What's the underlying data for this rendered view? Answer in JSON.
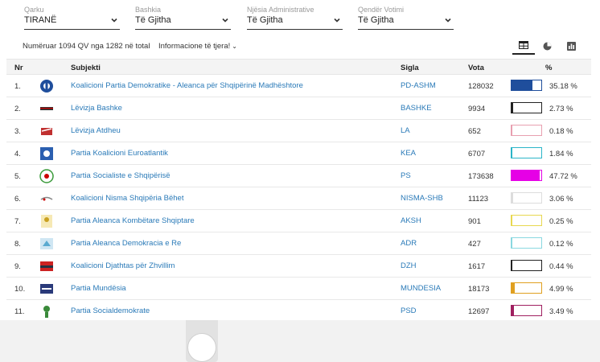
{
  "filters": [
    {
      "label": "Qarku",
      "value": "TIRANË"
    },
    {
      "label": "Bashkia",
      "value": "Të Gjitha"
    },
    {
      "label": "Njësia Administrative",
      "value": "Të Gjitha"
    },
    {
      "label": "Qendër Votimi",
      "value": "Të Gjitha"
    }
  ],
  "info": {
    "counted": "Numëruar 1094 QV nga 1282 në total",
    "more": "Informacione të tjera!"
  },
  "view_icons": [
    "table-icon",
    "pie-chart-icon",
    "bar-chart-icon"
  ],
  "table": {
    "headers": {
      "nr": "Nr",
      "subject": "Subjekti",
      "sigla": "Sigla",
      "vota": "Vota",
      "pct": "%"
    },
    "rows": [
      {
        "nr": "1.",
        "name": "Koalicioni Partia Demokratike - Aleanca për Shqipërinë Madhështore",
        "sigla": "PD-ASHM",
        "vota": "128032",
        "pct": "35.18 %",
        "pct_value": 35.18,
        "color": "#1f4e9c"
      },
      {
        "nr": "2.",
        "name": "Lëvizja Bashke",
        "sigla": "BASHKE",
        "vota": "9934",
        "pct": "2.73 %",
        "pct_value": 2.73,
        "color": "#222222"
      },
      {
        "nr": "3.",
        "name": "Lëvizja Atdheu",
        "sigla": "LA",
        "vota": "652",
        "pct": "0.18 %",
        "pct_value": 0.18,
        "color": "#e8a0b0"
      },
      {
        "nr": "4.",
        "name": "Partia Koalicioni Euroatlantik",
        "sigla": "KEA",
        "vota": "6707",
        "pct": "1.84 %",
        "pct_value": 1.84,
        "color": "#2bb5c8"
      },
      {
        "nr": "5.",
        "name": "Partia Socialiste e Shqipërisë",
        "sigla": "PS",
        "vota": "173638",
        "pct": "47.72 %",
        "pct_value": 47.72,
        "color": "#e600e6"
      },
      {
        "nr": "6.",
        "name": "Koalicioni Nisma Shqipëria Bëhet",
        "sigla": "NISMA-SHB",
        "vota": "11123",
        "pct": "3.06 %",
        "pct_value": 3.06,
        "color": "#dddddd"
      },
      {
        "nr": "7.",
        "name": "Partia Aleanca Kombëtare Shqiptare",
        "sigla": "AKSH",
        "vota": "901",
        "pct": "0.25 %",
        "pct_value": 0.25,
        "color": "#e8d850"
      },
      {
        "nr": "8.",
        "name": "Partia Aleanca Demokracia e Re",
        "sigla": "ADR",
        "vota": "427",
        "pct": "0.12 %",
        "pct_value": 0.12,
        "color": "#8ad8e0"
      },
      {
        "nr": "9.",
        "name": "Koalicioni Djathtas për Zhvillim",
        "sigla": "DZH",
        "vota": "1617",
        "pct": "0.44 %",
        "pct_value": 0.44,
        "color": "#222222"
      },
      {
        "nr": "10.",
        "name": "Partia Mundësia",
        "sigla": "MUNDESIA",
        "vota": "18173",
        "pct": "4.99 %",
        "pct_value": 4.99,
        "color": "#e0a020"
      },
      {
        "nr": "11.",
        "name": "Partia Socialdemokrate",
        "sigla": "PSD",
        "vota": "12697",
        "pct": "3.49 %",
        "pct_value": 3.49,
        "color": "#a02060"
      }
    ]
  }
}
